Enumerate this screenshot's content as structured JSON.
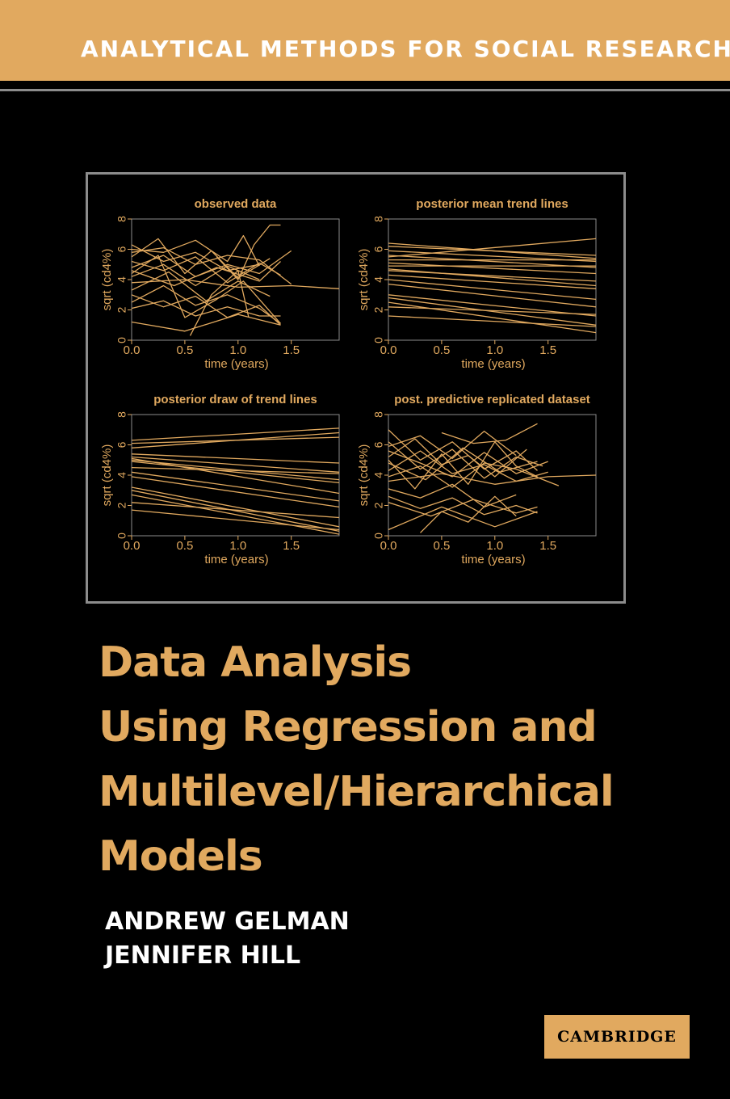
{
  "series": "ANALYTICAL METHODS FOR SOCIAL RESEARCH",
  "title_lines": [
    "Data Analysis",
    "Using Regression and",
    "Multilevel/Hierarchical",
    "Models"
  ],
  "authors": [
    "ANDREW GELMAN",
    "JENNIFER HILL"
  ],
  "publisher": "CAMBRIDGE",
  "colors": {
    "accent": "#e1a95f",
    "background": "#000000",
    "frame": "#8c8c8c",
    "text": "#ffffff"
  },
  "chart_data": [
    {
      "type": "line",
      "title": "observed data",
      "xlabel": "time (years)",
      "ylabel": "sqrt (cd4%)",
      "xlim": [
        0,
        1.95
      ],
      "ylim": [
        0,
        8
      ],
      "xticks": [
        "0.0",
        "0.5",
        "1.0",
        "1.5"
      ],
      "yticks": [
        "0",
        "2",
        "4",
        "6",
        "8"
      ],
      "series": [
        {
          "x": [
            0,
            0.3,
            0.6,
            0.9,
            1.2
          ],
          "y": [
            6.3,
            5.2,
            5.8,
            4.6,
            5.0
          ]
        },
        {
          "x": [
            0,
            0.25,
            0.5,
            0.75,
            1.0,
            1.3
          ],
          "y": [
            5.5,
            6.7,
            4.4,
            5.9,
            4.1,
            5.4
          ]
        },
        {
          "x": [
            0,
            0.3,
            0.6,
            0.9,
            1.2,
            1.5
          ],
          "y": [
            4.8,
            5.6,
            4.2,
            5.0,
            4.4,
            5.9
          ]
        },
        {
          "x": [
            0,
            0.3,
            0.6,
            0.9,
            1.2
          ],
          "y": [
            4.2,
            5.0,
            3.6,
            4.9,
            4.0
          ]
        },
        {
          "x": [
            0,
            0.5,
            1.0,
            1.5,
            1.95
          ],
          "y": [
            3.8,
            4.0,
            3.5,
            3.6,
            3.4
          ]
        },
        {
          "x": [
            0,
            0.3,
            0.6,
            0.9,
            1.2,
            1.4
          ],
          "y": [
            5.2,
            4.6,
            5.5,
            3.8,
            5.1,
            4.3
          ]
        },
        {
          "x": [
            0,
            0.4,
            0.8,
            1.2,
            1.4
          ],
          "y": [
            4.6,
            3.6,
            4.8,
            3.9,
            5.2
          ]
        },
        {
          "x": [
            0,
            0.3,
            0.6,
            0.9,
            1.2,
            1.5
          ],
          "y": [
            5.8,
            6.1,
            5.0,
            5.6,
            5.3,
            3.7
          ]
        },
        {
          "x": [
            0,
            0.3,
            0.6,
            0.9,
            1.2,
            1.4
          ],
          "y": [
            2.5,
            3.6,
            2.3,
            3.0,
            2.1,
            1.1
          ]
        },
        {
          "x": [
            0,
            0.3,
            0.6,
            0.9,
            1.2,
            1.4
          ],
          "y": [
            2.1,
            2.6,
            1.6,
            2.2,
            1.6,
            1.6
          ]
        },
        {
          "x": [
            0,
            0.3,
            0.6,
            0.9,
            1.2,
            1.4
          ],
          "y": [
            3.0,
            2.2,
            2.9,
            1.5,
            2.3,
            1.0
          ]
        },
        {
          "x": [
            0,
            0.5,
            1.0,
            1.4
          ],
          "y": [
            1.2,
            0.6,
            1.7,
            1.0
          ]
        },
        {
          "x": [
            0,
            0.25,
            0.5,
            0.8,
            1.05,
            1.4
          ],
          "y": [
            4.4,
            5.6,
            1.5,
            2.7,
            3.9,
            1.1
          ]
        },
        {
          "x": [
            0.55,
            0.75,
            1.0,
            1.1
          ],
          "y": [
            0.3,
            3.0,
            4.6,
            1.5
          ]
        },
        {
          "x": [
            0.8,
            1.0,
            1.15,
            1.3,
            1.4
          ],
          "y": [
            5.5,
            4.0,
            6.3,
            7.6,
            7.6
          ]
        },
        {
          "x": [
            0,
            0.3,
            0.6,
            0.9,
            1.05,
            1.2
          ],
          "y": [
            6.0,
            5.8,
            6.6,
            5.2,
            6.9,
            4.9
          ]
        },
        {
          "x": [
            0,
            0.35,
            0.7,
            1.0,
            1.3
          ],
          "y": [
            3.3,
            4.5,
            2.6,
            3.9,
            2.9
          ]
        }
      ]
    },
    {
      "type": "line",
      "title": "posterior mean trend lines",
      "xlabel": "time (years)",
      "ylabel": "sqrt (cd4%)",
      "xlim": [
        0,
        1.95
      ],
      "ylim": [
        0,
        8
      ],
      "xticks": [
        "0.0",
        "0.5",
        "1.0",
        "1.5"
      ],
      "yticks": [
        "0",
        "2",
        "4",
        "6",
        "8"
      ],
      "series": [
        {
          "x": [
            0,
            1.95
          ],
          "y": [
            6.4,
            5.4
          ]
        },
        {
          "x": [
            0,
            1.95
          ],
          "y": [
            6.2,
            5.6
          ]
        },
        {
          "x": [
            0,
            1.95
          ],
          "y": [
            5.9,
            5.2
          ]
        },
        {
          "x": [
            0,
            1.95
          ],
          "y": [
            5.5,
            6.7
          ]
        },
        {
          "x": [
            0,
            1.95
          ],
          "y": [
            5.6,
            4.8
          ]
        },
        {
          "x": [
            0,
            1.95
          ],
          "y": [
            5.3,
            5.3
          ]
        },
        {
          "x": [
            0,
            1.95
          ],
          "y": [
            5.1,
            4.4
          ]
        },
        {
          "x": [
            0,
            1.95
          ],
          "y": [
            4.9,
            4.9
          ]
        },
        {
          "x": [
            0,
            1.95
          ],
          "y": [
            4.7,
            3.6
          ]
        },
        {
          "x": [
            0,
            1.95
          ],
          "y": [
            4.6,
            3.9
          ]
        },
        {
          "x": [
            0,
            1.95
          ],
          "y": [
            4.3,
            3.4
          ]
        },
        {
          "x": [
            0,
            1.95
          ],
          "y": [
            4.0,
            2.7
          ]
        },
        {
          "x": [
            0,
            1.95
          ],
          "y": [
            3.7,
            2.2
          ]
        },
        {
          "x": [
            0,
            1.95
          ],
          "y": [
            3.0,
            1.6
          ]
        },
        {
          "x": [
            0,
            1.95
          ],
          "y": [
            2.8,
            1.0
          ]
        },
        {
          "x": [
            0,
            1.95
          ],
          "y": [
            2.5,
            0.5
          ]
        },
        {
          "x": [
            0,
            1.95
          ],
          "y": [
            1.6,
            0.9
          ]
        },
        {
          "x": [
            0,
            1.95
          ],
          "y": [
            2.2,
            1.7
          ]
        }
      ]
    },
    {
      "type": "line",
      "title": "posterior draw of trend lines",
      "xlabel": "time (years)",
      "ylabel": "sqrt (cd4%)",
      "xlim": [
        0,
        1.95
      ],
      "ylim": [
        0,
        8
      ],
      "xticks": [
        "0.0",
        "0.5",
        "1.0",
        "1.5"
      ],
      "yticks": [
        "0",
        "2",
        "4",
        "6",
        "8"
      ],
      "series": [
        {
          "x": [
            0,
            1.95
          ],
          "y": [
            6.3,
            7.1
          ]
        },
        {
          "x": [
            0,
            1.95
          ],
          "y": [
            6.1,
            6.5
          ]
        },
        {
          "x": [
            0,
            1.95
          ],
          "y": [
            5.8,
            6.8
          ]
        },
        {
          "x": [
            0,
            1.95
          ],
          "y": [
            5.4,
            4.8
          ]
        },
        {
          "x": [
            0,
            1.95
          ],
          "y": [
            5.2,
            4.2
          ]
        },
        {
          "x": [
            0,
            1.95
          ],
          "y": [
            5.0,
            3.7
          ]
        },
        {
          "x": [
            0,
            1.95
          ],
          "y": [
            4.9,
            3.5
          ]
        },
        {
          "x": [
            0,
            1.95
          ],
          "y": [
            5.1,
            2.8
          ]
        },
        {
          "x": [
            0,
            1.95
          ],
          "y": [
            4.5,
            4.1
          ]
        },
        {
          "x": [
            0,
            1.95
          ],
          "y": [
            4.2,
            2.3
          ]
        },
        {
          "x": [
            0,
            1.95
          ],
          "y": [
            3.9,
            1.9
          ]
        },
        {
          "x": [
            0,
            1.95
          ],
          "y": [
            3.2,
            0.6
          ]
        },
        {
          "x": [
            0,
            1.95
          ],
          "y": [
            3.0,
            0.3
          ]
        },
        {
          "x": [
            0,
            1.95
          ],
          "y": [
            2.7,
            0.1
          ]
        },
        {
          "x": [
            0,
            1.95
          ],
          "y": [
            1.7,
            0.4
          ]
        },
        {
          "x": [
            0,
            1.95
          ],
          "y": [
            2.2,
            1.2
          ]
        }
      ]
    },
    {
      "type": "line",
      "title": "post. predictive replicated dataset",
      "xlabel": "time (years)",
      "ylabel": "sqrt (cd4%)",
      "xlim": [
        0,
        1.95
      ],
      "ylim": [
        0,
        8
      ],
      "xticks": [
        "0.0",
        "0.5",
        "1.0",
        "1.5"
      ],
      "yticks": [
        "0",
        "2",
        "4",
        "6",
        "8"
      ],
      "series": [
        {
          "x": [
            0,
            0.3,
            0.6,
            0.9,
            1.2,
            1.4
          ],
          "y": [
            7.0,
            5.0,
            6.2,
            4.4,
            5.6,
            4.3
          ]
        },
        {
          "x": [
            0,
            0.3,
            0.6,
            0.9,
            1.2,
            1.45
          ],
          "y": [
            6.2,
            4.4,
            5.7,
            3.8,
            5.2,
            4.6
          ]
        },
        {
          "x": [
            0,
            0.3,
            0.6,
            0.9,
            1.2,
            1.5
          ],
          "y": [
            5.6,
            4.8,
            3.9,
            5.5,
            4.1,
            4.9
          ]
        },
        {
          "x": [
            0,
            0.25,
            0.5,
            0.75,
            1.0,
            1.3
          ],
          "y": [
            5.2,
            6.4,
            4.7,
            5.3,
            3.9,
            5.7
          ]
        },
        {
          "x": [
            0,
            0.35,
            0.7,
            1.05,
            1.4
          ],
          "y": [
            4.8,
            3.7,
            5.8,
            4.2,
            4.9
          ]
        },
        {
          "x": [
            0,
            0.3,
            0.6,
            0.9,
            1.2,
            1.5
          ],
          "y": [
            4.3,
            5.6,
            4.1,
            4.7,
            3.6,
            4.2
          ]
        },
        {
          "x": [
            0,
            0.3,
            0.6,
            0.9,
            1.2,
            1.6
          ],
          "y": [
            3.9,
            4.6,
            3.2,
            4.8,
            4.4,
            3.3
          ]
        },
        {
          "x": [
            0,
            0.5,
            1.0,
            1.5,
            1.95
          ],
          "y": [
            3.6,
            4.1,
            3.4,
            3.9,
            4.0
          ]
        },
        {
          "x": [
            0,
            0.3,
            0.6,
            0.9,
            1.2
          ],
          "y": [
            3.1,
            2.5,
            3.4,
            1.9,
            2.7
          ]
        },
        {
          "x": [
            0,
            0.3,
            0.6,
            0.9,
            1.2,
            1.4
          ],
          "y": [
            2.6,
            1.8,
            2.5,
            1.4,
            2.0,
            1.5
          ]
        },
        {
          "x": [
            0,
            0.4,
            0.8,
            1.2,
            1.4
          ],
          "y": [
            2.2,
            1.3,
            2.4,
            1.5,
            1.9
          ]
        },
        {
          "x": [
            0,
            0.5,
            1.0,
            1.4
          ],
          "y": [
            0.4,
            1.9,
            0.6,
            1.6
          ]
        },
        {
          "x": [
            0,
            0.25,
            0.5,
            0.75,
            1.0,
            1.2,
            1.4
          ],
          "y": [
            5.0,
            3.1,
            5.4,
            3.4,
            6.2,
            4.6,
            3.9
          ]
        },
        {
          "x": [
            0.5,
            0.8,
            1.1,
            1.4
          ],
          "y": [
            6.8,
            6.1,
            6.3,
            7.4
          ]
        },
        {
          "x": [
            0.3,
            0.5,
            0.75,
            1.0,
            1.2
          ],
          "y": [
            0.2,
            1.6,
            0.9,
            2.6,
            1.3
          ]
        },
        {
          "x": [
            0,
            0.3,
            0.6,
            0.9,
            1.2
          ],
          "y": [
            5.9,
            6.6,
            5.1,
            6.9,
            5.3
          ]
        }
      ]
    }
  ]
}
